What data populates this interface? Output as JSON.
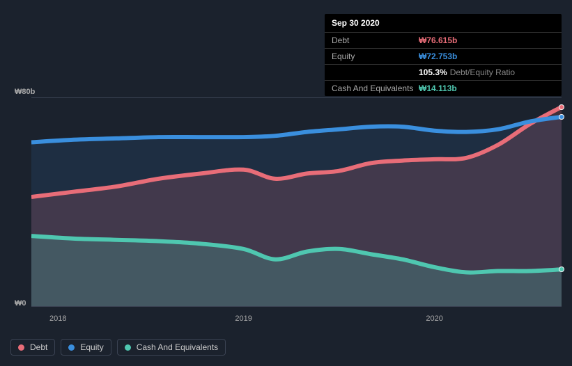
{
  "background_color": "#1b222d",
  "tooltip": {
    "date": "Sep 30 2020",
    "rows": [
      {
        "label": "Debt",
        "value": "₩76.615b",
        "color": "#e86d78"
      },
      {
        "label": "Equity",
        "value": "₩72.753b",
        "color": "#3a8fde"
      },
      {
        "label": "",
        "value": "105.3%",
        "sub": "Debt/Equity Ratio",
        "color": "#ffffff"
      },
      {
        "label": "Cash And Equivalents",
        "value": "₩14.113b",
        "color": "#4fc7b0"
      }
    ]
  },
  "chart": {
    "type": "area",
    "y_axis": {
      "min": 0,
      "max": 80,
      "ticks": [
        {
          "value": 0,
          "label": "₩0"
        },
        {
          "value": 80,
          "label": "₩80b"
        }
      ],
      "label_fontsize": 11,
      "label_color": "#aaaaaa"
    },
    "x_axis": {
      "ticks": [
        {
          "pos": 0.05,
          "label": "2018"
        },
        {
          "pos": 0.4,
          "label": "2019"
        },
        {
          "pos": 0.76,
          "label": "2020"
        }
      ],
      "label_fontsize": 11,
      "label_color": "#aaaaaa"
    },
    "gridline_color": "#3a4252",
    "series": [
      {
        "name": "Debt",
        "color": "#e86d78",
        "fill": "rgba(232,109,120,0.18)",
        "line_width": 2,
        "points": [
          [
            0.0,
            42
          ],
          [
            0.08,
            44
          ],
          [
            0.16,
            46
          ],
          [
            0.24,
            49
          ],
          [
            0.32,
            51
          ],
          [
            0.4,
            52.5
          ],
          [
            0.46,
            49
          ],
          [
            0.52,
            51
          ],
          [
            0.58,
            52
          ],
          [
            0.64,
            55
          ],
          [
            0.7,
            56
          ],
          [
            0.76,
            56.5
          ],
          [
            0.82,
            57
          ],
          [
            0.88,
            62
          ],
          [
            0.94,
            70
          ],
          [
            1.0,
            76.6
          ]
        ]
      },
      {
        "name": "Equity",
        "color": "#3a8fde",
        "fill": "rgba(58,143,222,0.12)",
        "line_width": 2,
        "points": [
          [
            0.0,
            63
          ],
          [
            0.08,
            64
          ],
          [
            0.16,
            64.5
          ],
          [
            0.24,
            65
          ],
          [
            0.32,
            65
          ],
          [
            0.4,
            65
          ],
          [
            0.46,
            65.5
          ],
          [
            0.52,
            67
          ],
          [
            0.58,
            68
          ],
          [
            0.64,
            69
          ],
          [
            0.7,
            69
          ],
          [
            0.76,
            67.5
          ],
          [
            0.82,
            67
          ],
          [
            0.88,
            68
          ],
          [
            0.94,
            71
          ],
          [
            1.0,
            72.8
          ]
        ]
      },
      {
        "name": "Cash And Equivalents",
        "color": "#4fc7b0",
        "fill": "rgba(79,199,176,0.22)",
        "line_width": 2,
        "points": [
          [
            0.0,
            27
          ],
          [
            0.08,
            26
          ],
          [
            0.16,
            25.5
          ],
          [
            0.24,
            25
          ],
          [
            0.32,
            24
          ],
          [
            0.4,
            22
          ],
          [
            0.46,
            18
          ],
          [
            0.52,
            21
          ],
          [
            0.58,
            22
          ],
          [
            0.64,
            20
          ],
          [
            0.7,
            18
          ],
          [
            0.76,
            15
          ],
          [
            0.82,
            13
          ],
          [
            0.88,
            13.5
          ],
          [
            0.94,
            13.5
          ],
          [
            1.0,
            14.1
          ]
        ]
      }
    ]
  },
  "legend": {
    "items": [
      {
        "label": "Debt",
        "color": "#e86d78"
      },
      {
        "label": "Equity",
        "color": "#3a8fde"
      },
      {
        "label": "Cash And Equivalents",
        "color": "#4fc7b0"
      }
    ],
    "border_color": "#3a4252",
    "fontsize": 12
  }
}
